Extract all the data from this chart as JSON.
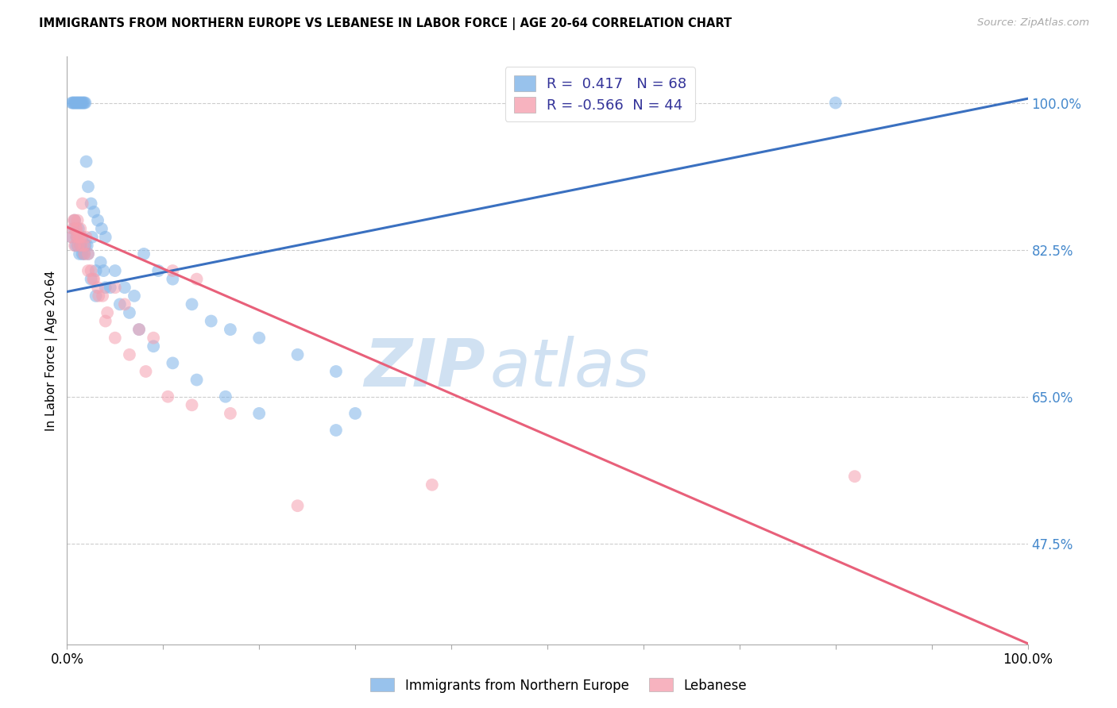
{
  "title": "IMMIGRANTS FROM NORTHERN EUROPE VS LEBANESE IN LABOR FORCE | AGE 20-64 CORRELATION CHART",
  "source": "Source: ZipAtlas.com",
  "ylabel": "In Labor Force | Age 20-64",
  "blue_R": 0.417,
  "blue_N": 68,
  "pink_R": -0.566,
  "pink_N": 44,
  "blue_color": "#7EB3E8",
  "pink_color": "#F5A0B0",
  "blue_line_color": "#3A70C0",
  "pink_line_color": "#E8607A",
  "watermark_zip": "ZIP",
  "watermark_atlas": "atlas",
  "xlim": [
    0.0,
    1.0
  ],
  "ylim": [
    0.355,
    1.055
  ],
  "yticks": [
    0.475,
    0.65,
    0.825,
    1.0
  ],
  "ytick_labels": [
    "47.5%",
    "65.0%",
    "82.5%",
    "100.0%"
  ],
  "blue_line_x0": 0.0,
  "blue_line_y0": 0.775,
  "blue_line_x1": 1.0,
  "blue_line_y1": 1.005,
  "pink_line_x0": 0.0,
  "pink_line_y0": 0.852,
  "pink_line_x1": 1.0,
  "pink_line_y1": 0.356,
  "blue_x": [
    0.005,
    0.006,
    0.007,
    0.008,
    0.009,
    0.01,
    0.011,
    0.012,
    0.013,
    0.014,
    0.015,
    0.016,
    0.017,
    0.018,
    0.019,
    0.02,
    0.022,
    0.025,
    0.028,
    0.032,
    0.036,
    0.04,
    0.005,
    0.007,
    0.009,
    0.011,
    0.013,
    0.016,
    0.019,
    0.022,
    0.026,
    0.03,
    0.035,
    0.04,
    0.05,
    0.06,
    0.07,
    0.08,
    0.095,
    0.11,
    0.13,
    0.15,
    0.17,
    0.2,
    0.24,
    0.28,
    0.008,
    0.01,
    0.012,
    0.014,
    0.016,
    0.018,
    0.021,
    0.025,
    0.03,
    0.038,
    0.045,
    0.055,
    0.065,
    0.075,
    0.09,
    0.11,
    0.135,
    0.165,
    0.2,
    0.28,
    0.3,
    0.8
  ],
  "blue_y": [
    1.0,
    1.0,
    1.0,
    1.0,
    1.0,
    1.0,
    1.0,
    1.0,
    1.0,
    1.0,
    1.0,
    1.0,
    1.0,
    1.0,
    1.0,
    0.93,
    0.9,
    0.88,
    0.87,
    0.86,
    0.85,
    0.84,
    0.84,
    0.85,
    0.83,
    0.83,
    0.82,
    0.82,
    0.83,
    0.82,
    0.84,
    0.8,
    0.81,
    0.78,
    0.8,
    0.78,
    0.77,
    0.82,
    0.8,
    0.79,
    0.76,
    0.74,
    0.73,
    0.72,
    0.7,
    0.68,
    0.86,
    0.84,
    0.85,
    0.83,
    0.84,
    0.82,
    0.83,
    0.79,
    0.77,
    0.8,
    0.78,
    0.76,
    0.75,
    0.73,
    0.71,
    0.69,
    0.67,
    0.65,
    0.63,
    0.61,
    0.63,
    1.0
  ],
  "pink_x": [
    0.005,
    0.006,
    0.007,
    0.008,
    0.009,
    0.01,
    0.011,
    0.012,
    0.013,
    0.014,
    0.015,
    0.016,
    0.018,
    0.02,
    0.022,
    0.025,
    0.028,
    0.032,
    0.037,
    0.042,
    0.05,
    0.06,
    0.075,
    0.09,
    0.11,
    0.135,
    0.008,
    0.01,
    0.012,
    0.015,
    0.018,
    0.022,
    0.027,
    0.033,
    0.04,
    0.05,
    0.065,
    0.082,
    0.105,
    0.13,
    0.17,
    0.24,
    0.38,
    0.82
  ],
  "pink_y": [
    0.84,
    0.85,
    0.86,
    0.83,
    0.85,
    0.84,
    0.86,
    0.83,
    0.84,
    0.85,
    0.84,
    0.88,
    0.83,
    0.84,
    0.82,
    0.8,
    0.79,
    0.78,
    0.77,
    0.75,
    0.78,
    0.76,
    0.73,
    0.72,
    0.8,
    0.79,
    0.86,
    0.85,
    0.84,
    0.83,
    0.82,
    0.8,
    0.79,
    0.77,
    0.74,
    0.72,
    0.7,
    0.68,
    0.65,
    0.64,
    0.63,
    0.52,
    0.545,
    0.555
  ]
}
